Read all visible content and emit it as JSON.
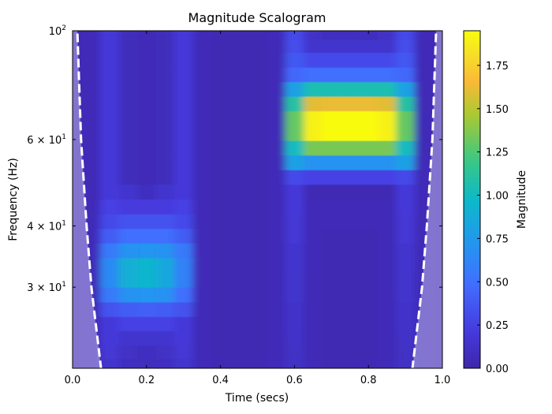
{
  "chart_data": {
    "type": "heatmap",
    "title": "Magnitude Scalogram",
    "xlabel": "Time (secs)",
    "ylabel": "Frequency (Hz)",
    "colorbar_label": "Magnitude",
    "colormap": "parula",
    "xlim": [
      0,
      1
    ],
    "ylim": [
      20.5,
      100
    ],
    "yscale": "log",
    "clim": [
      0,
      1.95
    ],
    "xticks": [
      {
        "value": 0.0,
        "label": "0.0"
      },
      {
        "value": 0.2,
        "label": "0.2"
      },
      {
        "value": 0.4,
        "label": "0.4"
      },
      {
        "value": 0.6,
        "label": "0.6"
      },
      {
        "value": 0.8,
        "label": "0.8"
      },
      {
        "value": 1.0,
        "label": "1.0"
      }
    ],
    "yticks": [
      {
        "value": 100,
        "base": "10",
        "exp": "2"
      },
      {
        "value": 60,
        "base": "6 × 10",
        "exp": "1"
      },
      {
        "value": 40,
        "base": "4 × 10",
        "exp": "1"
      },
      {
        "value": 30,
        "base": "3 × 10",
        "exp": "1"
      }
    ],
    "colorbar_ticks": [
      {
        "value": 0.0,
        "label": "0.00"
      },
      {
        "value": 0.25,
        "label": "0.25"
      },
      {
        "value": 0.5,
        "label": "0.50"
      },
      {
        "value": 0.75,
        "label": "0.75"
      },
      {
        "value": 1.0,
        "label": "1.00"
      },
      {
        "value": 1.25,
        "label": "1.25"
      },
      {
        "value": 1.5,
        "label": "1.50"
      },
      {
        "value": 1.75,
        "label": "1.75"
      }
    ],
    "times": [
      0,
      0.05,
      0.1,
      0.15,
      0.2,
      0.25,
      0.3,
      0.35,
      0.4,
      0.45,
      0.5,
      0.55,
      0.6,
      0.65,
      0.7,
      0.75,
      0.8,
      0.85,
      0.9,
      0.95,
      1.0
    ],
    "frequencies": [
      98.3,
      93.4,
      87.0,
      81.3,
      75.9,
      70.9,
      66.2,
      61.7,
      57.6,
      53.8,
      50.2,
      46.9,
      43.7,
      40.8,
      38.1,
      35.6,
      33.2,
      31.0,
      28.9,
      27.0,
      25.2,
      23.6,
      22.0,
      20.8
    ],
    "magnitude": [
      [
        0.05,
        0.06,
        0.2,
        0.08,
        0.06,
        0.08,
        0.2,
        0.06,
        0.05,
        0.05,
        0.05,
        0.06,
        0.3,
        0.12,
        0.1,
        0.1,
        0.1,
        0.12,
        0.3,
        0.06,
        0.05
      ],
      [
        0.05,
        0.06,
        0.2,
        0.08,
        0.06,
        0.08,
        0.2,
        0.06,
        0.05,
        0.05,
        0.05,
        0.06,
        0.32,
        0.15,
        0.15,
        0.15,
        0.15,
        0.15,
        0.32,
        0.06,
        0.05
      ],
      [
        0.05,
        0.06,
        0.2,
        0.08,
        0.06,
        0.08,
        0.2,
        0.06,
        0.05,
        0.05,
        0.05,
        0.06,
        0.38,
        0.3,
        0.3,
        0.3,
        0.3,
        0.3,
        0.38,
        0.06,
        0.05
      ],
      [
        0.05,
        0.06,
        0.2,
        0.08,
        0.06,
        0.08,
        0.2,
        0.06,
        0.05,
        0.05,
        0.05,
        0.06,
        0.45,
        0.5,
        0.5,
        0.5,
        0.5,
        0.5,
        0.45,
        0.06,
        0.05
      ],
      [
        0.05,
        0.06,
        0.2,
        0.08,
        0.06,
        0.08,
        0.2,
        0.06,
        0.05,
        0.05,
        0.05,
        0.06,
        0.8,
        1.05,
        1.05,
        1.05,
        1.05,
        1.05,
        0.8,
        0.06,
        0.05
      ],
      [
        0.05,
        0.06,
        0.2,
        0.08,
        0.06,
        0.08,
        0.2,
        0.06,
        0.05,
        0.05,
        0.05,
        0.06,
        1.1,
        1.6,
        1.62,
        1.62,
        1.62,
        1.6,
        1.1,
        0.06,
        0.05
      ],
      [
        0.05,
        0.06,
        0.2,
        0.08,
        0.06,
        0.08,
        0.2,
        0.06,
        0.05,
        0.05,
        0.05,
        0.06,
        1.3,
        1.9,
        1.95,
        1.95,
        1.95,
        1.9,
        1.3,
        0.06,
        0.05
      ],
      [
        0.05,
        0.06,
        0.2,
        0.08,
        0.06,
        0.08,
        0.2,
        0.06,
        0.05,
        0.05,
        0.05,
        0.06,
        1.3,
        1.9,
        1.95,
        1.95,
        1.95,
        1.9,
        1.3,
        0.06,
        0.05
      ],
      [
        0.05,
        0.06,
        0.2,
        0.08,
        0.06,
        0.08,
        0.2,
        0.06,
        0.05,
        0.05,
        0.05,
        0.06,
        1.0,
        1.35,
        1.35,
        1.35,
        1.35,
        1.35,
        1.0,
        0.06,
        0.05
      ],
      [
        0.05,
        0.06,
        0.2,
        0.08,
        0.06,
        0.08,
        0.2,
        0.06,
        0.05,
        0.05,
        0.05,
        0.06,
        0.8,
        0.7,
        0.7,
        0.7,
        0.7,
        0.7,
        0.8,
        0.06,
        0.05
      ],
      [
        0.05,
        0.06,
        0.2,
        0.08,
        0.06,
        0.08,
        0.2,
        0.06,
        0.05,
        0.05,
        0.05,
        0.06,
        0.3,
        0.25,
        0.25,
        0.25,
        0.25,
        0.25,
        0.3,
        0.06,
        0.05
      ],
      [
        0.05,
        0.06,
        0.2,
        0.15,
        0.1,
        0.15,
        0.2,
        0.06,
        0.05,
        0.05,
        0.05,
        0.06,
        0.2,
        0.05,
        0.05,
        0.05,
        0.05,
        0.05,
        0.2,
        0.06,
        0.05
      ],
      [
        0.05,
        0.06,
        0.25,
        0.22,
        0.22,
        0.22,
        0.25,
        0.06,
        0.05,
        0.05,
        0.05,
        0.06,
        0.2,
        0.06,
        0.06,
        0.06,
        0.06,
        0.06,
        0.2,
        0.06,
        0.05
      ],
      [
        0.05,
        0.06,
        0.3,
        0.35,
        0.35,
        0.35,
        0.3,
        0.06,
        0.05,
        0.05,
        0.05,
        0.06,
        0.18,
        0.06,
        0.06,
        0.06,
        0.06,
        0.06,
        0.18,
        0.06,
        0.05
      ],
      [
        0.05,
        0.06,
        0.4,
        0.5,
        0.5,
        0.5,
        0.4,
        0.06,
        0.05,
        0.05,
        0.05,
        0.06,
        0.18,
        0.06,
        0.05,
        0.05,
        0.05,
        0.06,
        0.18,
        0.06,
        0.05
      ],
      [
        0.05,
        0.06,
        0.55,
        0.7,
        0.72,
        0.7,
        0.55,
        0.06,
        0.05,
        0.05,
        0.05,
        0.06,
        0.16,
        0.06,
        0.05,
        0.05,
        0.05,
        0.06,
        0.16,
        0.06,
        0.05
      ],
      [
        0.05,
        0.06,
        0.65,
        0.9,
        0.95,
        0.85,
        0.6,
        0.06,
        0.05,
        0.05,
        0.05,
        0.06,
        0.16,
        0.06,
        0.05,
        0.05,
        0.05,
        0.06,
        0.16,
        0.06,
        0.05
      ],
      [
        0.05,
        0.06,
        0.65,
        0.9,
        0.95,
        0.85,
        0.6,
        0.06,
        0.05,
        0.05,
        0.05,
        0.06,
        0.15,
        0.06,
        0.05,
        0.05,
        0.05,
        0.06,
        0.15,
        0.06,
        0.05
      ],
      [
        0.05,
        0.06,
        0.55,
        0.7,
        0.72,
        0.7,
        0.5,
        0.06,
        0.05,
        0.05,
        0.05,
        0.06,
        0.15,
        0.06,
        0.05,
        0.05,
        0.05,
        0.06,
        0.15,
        0.06,
        0.05
      ],
      [
        0.05,
        0.06,
        0.35,
        0.4,
        0.42,
        0.4,
        0.35,
        0.06,
        0.05,
        0.05,
        0.05,
        0.06,
        0.14,
        0.06,
        0.05,
        0.05,
        0.05,
        0.06,
        0.14,
        0.06,
        0.05
      ],
      [
        0.05,
        0.06,
        0.2,
        0.25,
        0.25,
        0.25,
        0.2,
        0.06,
        0.05,
        0.05,
        0.05,
        0.06,
        0.14,
        0.06,
        0.05,
        0.05,
        0.05,
        0.06,
        0.14,
        0.06,
        0.05
      ],
      [
        0.05,
        0.06,
        0.2,
        0.15,
        0.15,
        0.15,
        0.2,
        0.06,
        0.05,
        0.05,
        0.05,
        0.06,
        0.13,
        0.06,
        0.05,
        0.05,
        0.05,
        0.06,
        0.13,
        0.06,
        0.05
      ],
      [
        0.05,
        0.06,
        0.18,
        0.12,
        0.1,
        0.12,
        0.18,
        0.06,
        0.05,
        0.05,
        0.05,
        0.06,
        0.12,
        0.06,
        0.05,
        0.05,
        0.05,
        0.06,
        0.12,
        0.06,
        0.05
      ],
      [
        0.05,
        0.06,
        0.15,
        0.1,
        0.08,
        0.1,
        0.15,
        0.06,
        0.05,
        0.05,
        0.05,
        0.06,
        0.12,
        0.06,
        0.05,
        0.05,
        0.05,
        0.06,
        0.12,
        0.06,
        0.05
      ]
    ],
    "cone_of_influence": {
      "left": [
        [
          0.013,
          100
        ],
        [
          0.023,
          60
        ],
        [
          0.038,
          40
        ],
        [
          0.051,
          30
        ],
        [
          0.077,
          20.5
        ]
      ],
      "right": [
        [
          0.983,
          100
        ],
        [
          0.973,
          60
        ],
        [
          0.958,
          40
        ],
        [
          0.945,
          30
        ],
        [
          0.919,
          20.5
        ]
      ]
    }
  }
}
